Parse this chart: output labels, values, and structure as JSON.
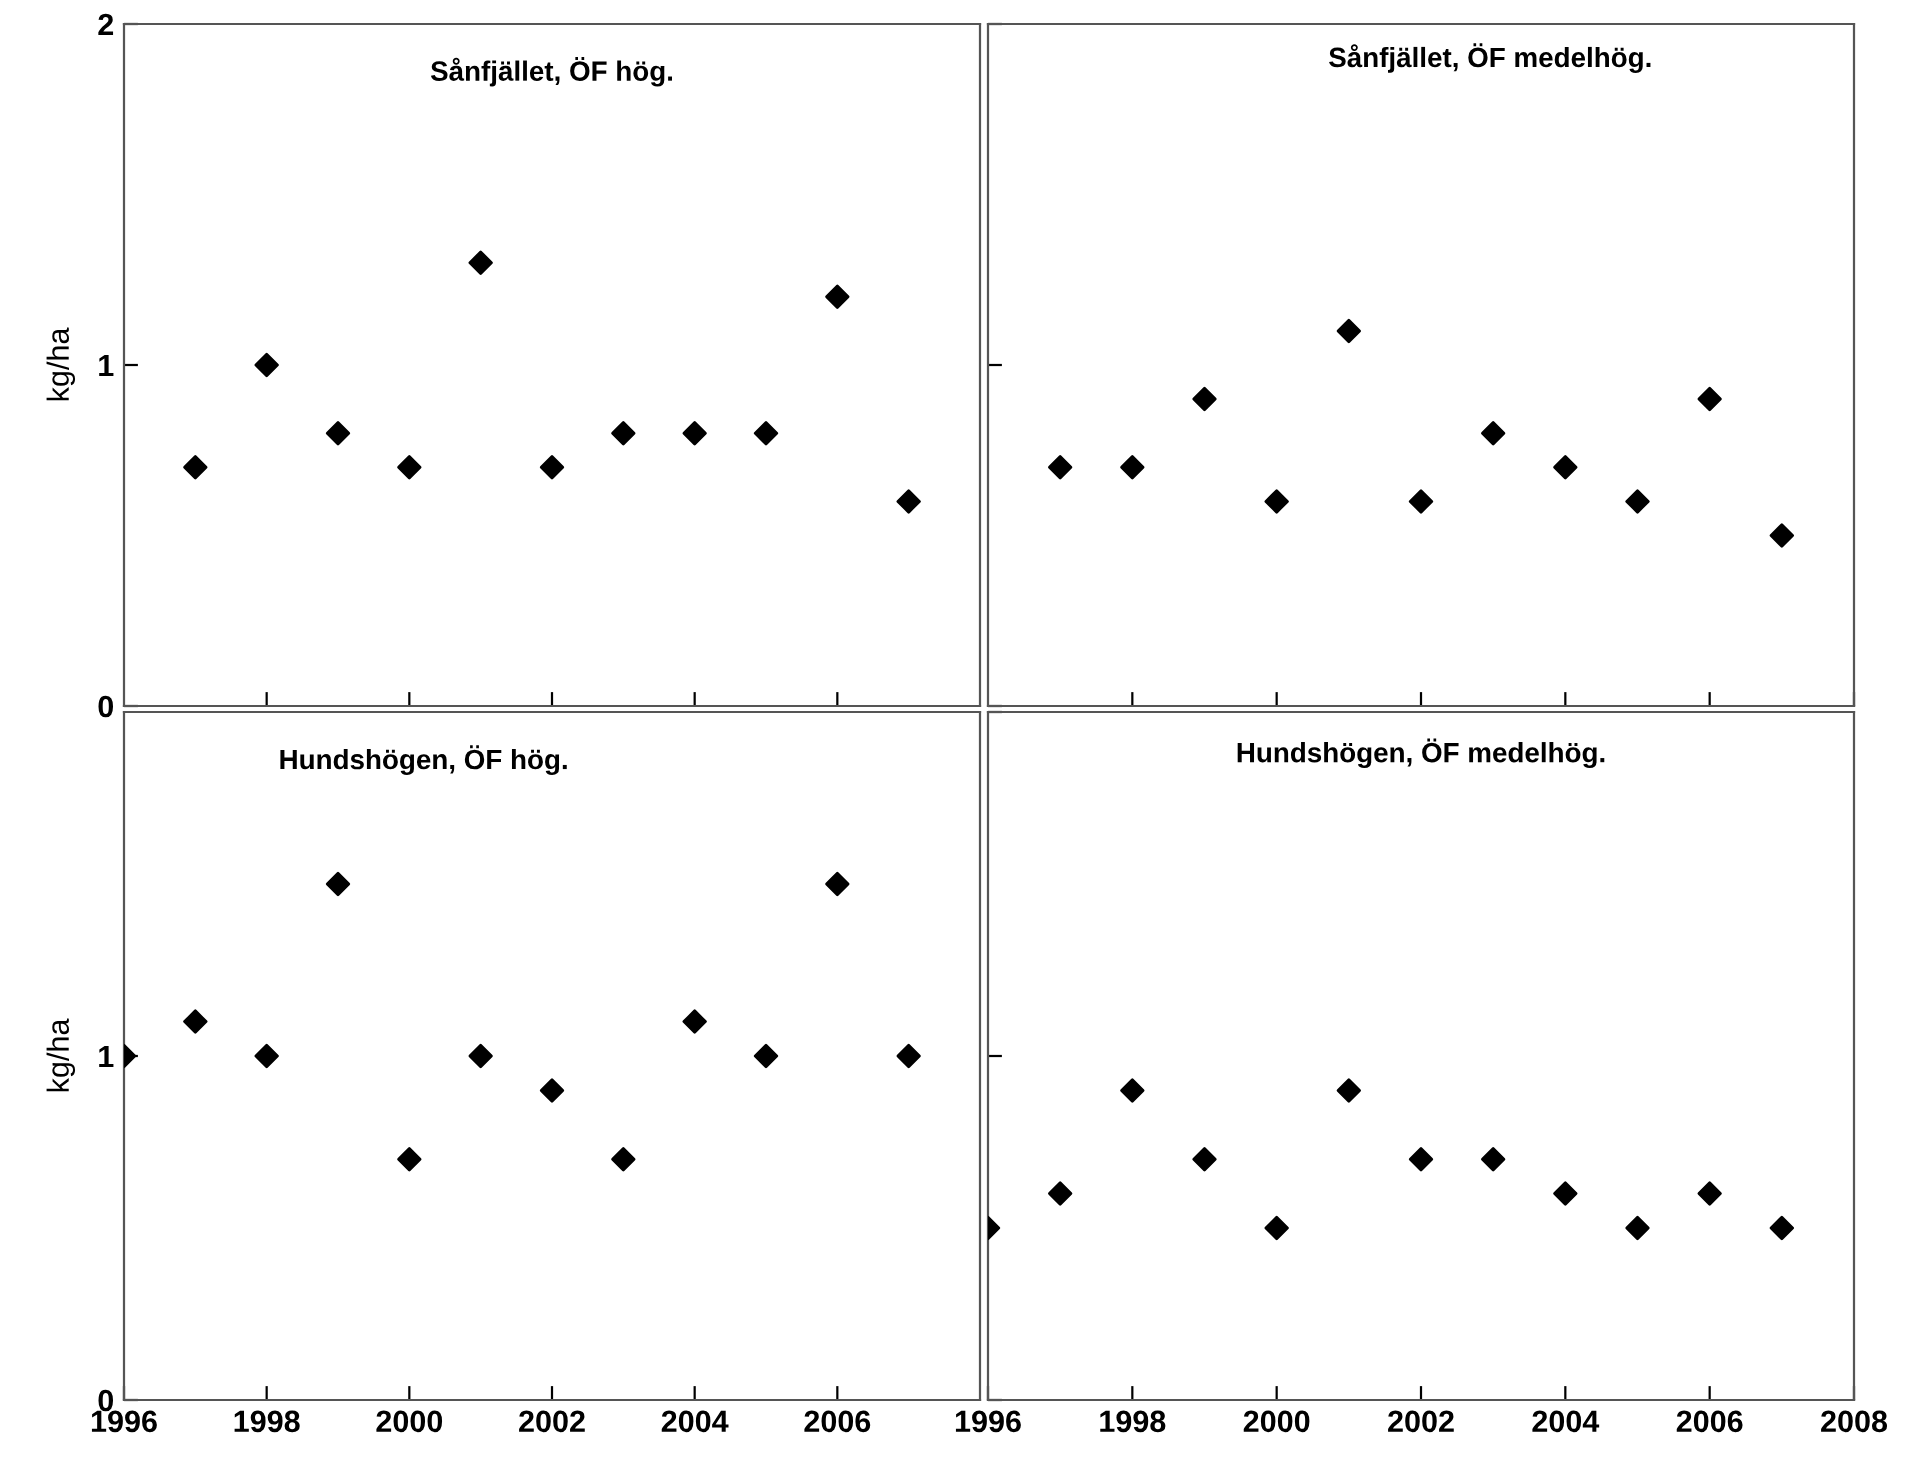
{
  "chart_data": [
    {
      "type": "scatter",
      "title": "Sånfjället, ÖF hög.",
      "ylabel": "kg/ha",
      "x": [
        1997,
        1998,
        1999,
        2000,
        2001,
        2002,
        2003,
        2004,
        2005,
        2006,
        2007
      ],
      "series": [
        {
          "color": "#000000",
          "values": [
            0.7,
            1.0,
            0.8,
            0.7,
            1.3,
            0.7,
            0.8,
            0.8,
            0.8,
            1.2,
            0.6
          ]
        }
      ],
      "marker": "diamond",
      "xlim": [
        1996,
        2008
      ],
      "ylim": [
        0,
        2
      ],
      "xticks": [
        1998,
        2000,
        2002,
        2004,
        2006
      ],
      "yticks": [
        0,
        1,
        2
      ],
      "tick_labels": "y",
      "grid": false
    },
    {
      "type": "scatter",
      "title": "Sånfjället, ÖF medelhög.",
      "x": [
        1997,
        1998,
        1999,
        2000,
        2001,
        2002,
        2003,
        2004,
        2005,
        2006,
        2007
      ],
      "series": [
        {
          "color": "#000000",
          "values": [
            0.7,
            0.7,
            0.9,
            0.6,
            1.1,
            0.6,
            0.8,
            0.7,
            0.6,
            0.9,
            0.5
          ]
        }
      ],
      "marker": "diamond",
      "xlim": [
        1996,
        2008
      ],
      "ylim": [
        0,
        2
      ],
      "xticks": [
        1998,
        2000,
        2002,
        2004,
        2006,
        2008
      ],
      "yticks": [
        0,
        1,
        2
      ],
      "tick_labels": false,
      "grid": false
    },
    {
      "type": "scatter",
      "title": "Hundshögen, ÖF hög.",
      "ylabel": "kg/ha",
      "x": [
        1996,
        1997,
        1998,
        1999,
        2000,
        2001,
        2002,
        2003,
        2004,
        2005,
        2006,
        2007
      ],
      "series": [
        {
          "color": "#000000",
          "values": [
            1.0,
            1.1,
            1.0,
            1.5,
            0.7,
            1.0,
            0.9,
            0.7,
            1.1,
            1.0,
            1.5,
            1.0
          ]
        }
      ],
      "marker": "diamond",
      "xlim": [
        1996,
        2008
      ],
      "ylim": [
        0,
        2
      ],
      "xticks": [
        1996,
        1998,
        2000,
        2002,
        2004,
        2006
      ],
      "yticks": [
        0,
        1
      ],
      "grid": false
    },
    {
      "type": "scatter",
      "title": "Hundshögen, ÖF medelhög.",
      "x": [
        1996,
        1997,
        1998,
        1999,
        2000,
        2001,
        2002,
        2003,
        2004,
        2005,
        2006,
        2007
      ],
      "series": [
        {
          "color": "#000000",
          "values": [
            0.5,
            0.6,
            0.9,
            0.7,
            0.5,
            0.9,
            0.7,
            0.7,
            0.6,
            0.5,
            0.6,
            0.5
          ]
        }
      ],
      "marker": "diamond",
      "xlim": [
        1996,
        2008
      ],
      "ylim": [
        0,
        2
      ],
      "xticks": [
        1996,
        1998,
        2000,
        2002,
        2004,
        2006,
        2008
      ],
      "yticks": [
        0,
        1,
        2
      ],
      "tick_labels": "x",
      "grid": false
    }
  ]
}
